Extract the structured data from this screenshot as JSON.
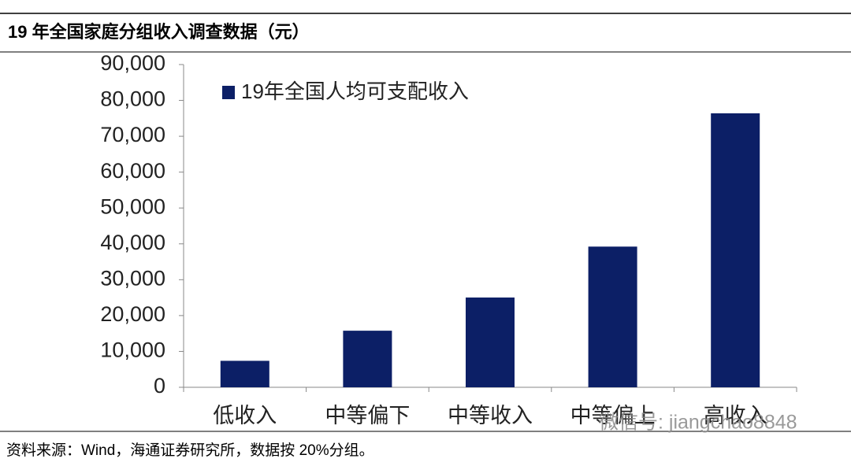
{
  "chart_data": {
    "type": "bar",
    "title": "19 年全国家庭分组收入调查数据（元）",
    "legend": "19年全国人均可支配收入",
    "categories": [
      "低收入",
      "中等偏下",
      "中等收入",
      "中等偏上",
      "高收入"
    ],
    "values": [
      7380,
      15777,
      25035,
      39230,
      76401
    ],
    "color": "#0c1f66",
    "ylim": [
      0,
      90000
    ],
    "yticks": [
      0,
      {
        "value": 10000,
        "label": "10,000"
      },
      {
        "value": 20000,
        "label": "20,000"
      },
      {
        "value": 30000,
        "label": "30,000"
      },
      {
        "value": 40000,
        "label": "40,000"
      },
      {
        "value": 50000,
        "label": "50,000"
      },
      {
        "value": 60000,
        "label": "60,000"
      },
      {
        "value": 70000,
        "label": "70,000"
      },
      {
        "value": 80000,
        "label": "80,000"
      },
      {
        "value": 90000,
        "label": "90,000"
      }
    ],
    "source": "资料来源：Wind，海通证券研究所，数据按 20%分组。",
    "watermark": "微信号: jiangchao8848"
  }
}
